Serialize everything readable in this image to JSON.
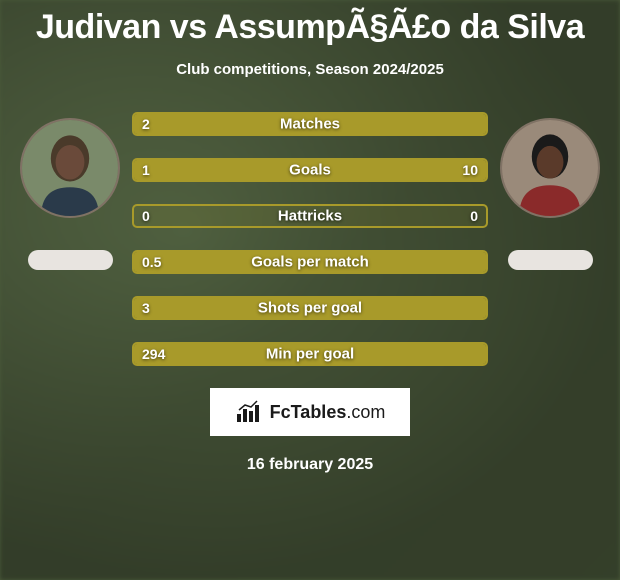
{
  "title": "Judivan vs AssumpÃ§Ã£o da Silva",
  "subtitle": "Club competitions, Season 2024/2025",
  "footer_brand_bold": "FcTables",
  "footer_brand_light": ".com",
  "footer_date": "16 february 2025",
  "colors": {
    "player_left": "#a89a2a",
    "player_right": "#a89a2a",
    "track_border": "#a89a2a",
    "track_bg": "rgba(168,154,42,0.12)"
  },
  "stats": [
    {
      "label": "Matches",
      "left_val": "2",
      "right_val": "",
      "left_pct": 100,
      "right_pct": 0
    },
    {
      "label": "Goals",
      "left_val": "1",
      "right_val": "10",
      "left_pct": 9,
      "right_pct": 91
    },
    {
      "label": "Hattricks",
      "left_val": "0",
      "right_val": "0",
      "left_pct": 0,
      "right_pct": 0
    },
    {
      "label": "Goals per match",
      "left_val": "0.5",
      "right_val": "",
      "left_pct": 100,
      "right_pct": 0
    },
    {
      "label": "Shots per goal",
      "left_val": "3",
      "right_val": "",
      "left_pct": 100,
      "right_pct": 0
    },
    {
      "label": "Min per goal",
      "left_val": "294",
      "right_val": "",
      "left_pct": 100,
      "right_pct": 0
    }
  ]
}
